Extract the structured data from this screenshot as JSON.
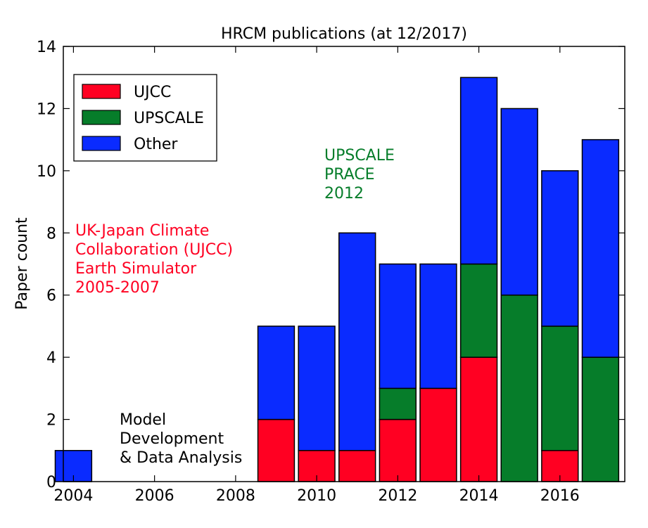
{
  "chart_data": {
    "type": "bar",
    "stacked": true,
    "title": "HRCM publications (at 12/2017)",
    "xlabel": "",
    "ylabel": "Paper count",
    "xlim": [
      2003.75,
      2017.6
    ],
    "ylim": [
      0,
      14
    ],
    "x_ticks": [
      "2004",
      "2006",
      "2008",
      "2010",
      "2012",
      "2014",
      "2016"
    ],
    "y_ticks": [
      "0",
      "2",
      "4",
      "6",
      "8",
      "10",
      "12",
      "14"
    ],
    "grid": false,
    "legend_position": "top-left",
    "categories": [
      2004,
      2005,
      2006,
      2007,
      2008,
      2009,
      2010,
      2011,
      2012,
      2013,
      2014,
      2015,
      2016,
      2017
    ],
    "series": [
      {
        "name": "UJCC",
        "color": "#ff0022",
        "values": [
          0,
          0,
          0,
          0,
          0,
          2,
          1,
          1,
          2,
          3,
          4,
          0,
          1,
          0
        ]
      },
      {
        "name": "UPSCALE",
        "color": "#067d2a",
        "values": [
          0,
          0,
          0,
          0,
          0,
          0,
          0,
          0,
          1,
          0,
          3,
          6,
          4,
          4
        ]
      },
      {
        "name": "Other",
        "color": "#0a2bff",
        "values": [
          1,
          0,
          0,
          0,
          0,
          3,
          4,
          7,
          4,
          4,
          6,
          6,
          5,
          7
        ]
      }
    ],
    "annotations": [
      {
        "id": "upscale",
        "color": "#067d2a",
        "lines": [
          "UPSCALE",
          "PRACE",
          "2012"
        ]
      },
      {
        "id": "ujcc",
        "color": "#ff0022",
        "lines": [
          "UK-Japan Climate",
          "Collaboration (UJCC)",
          "Earth Simulator",
          "2005-2007"
        ]
      },
      {
        "id": "model",
        "color": "#000000",
        "lines": [
          "Model",
          "Development",
          "& Data Analysis"
        ]
      }
    ]
  }
}
